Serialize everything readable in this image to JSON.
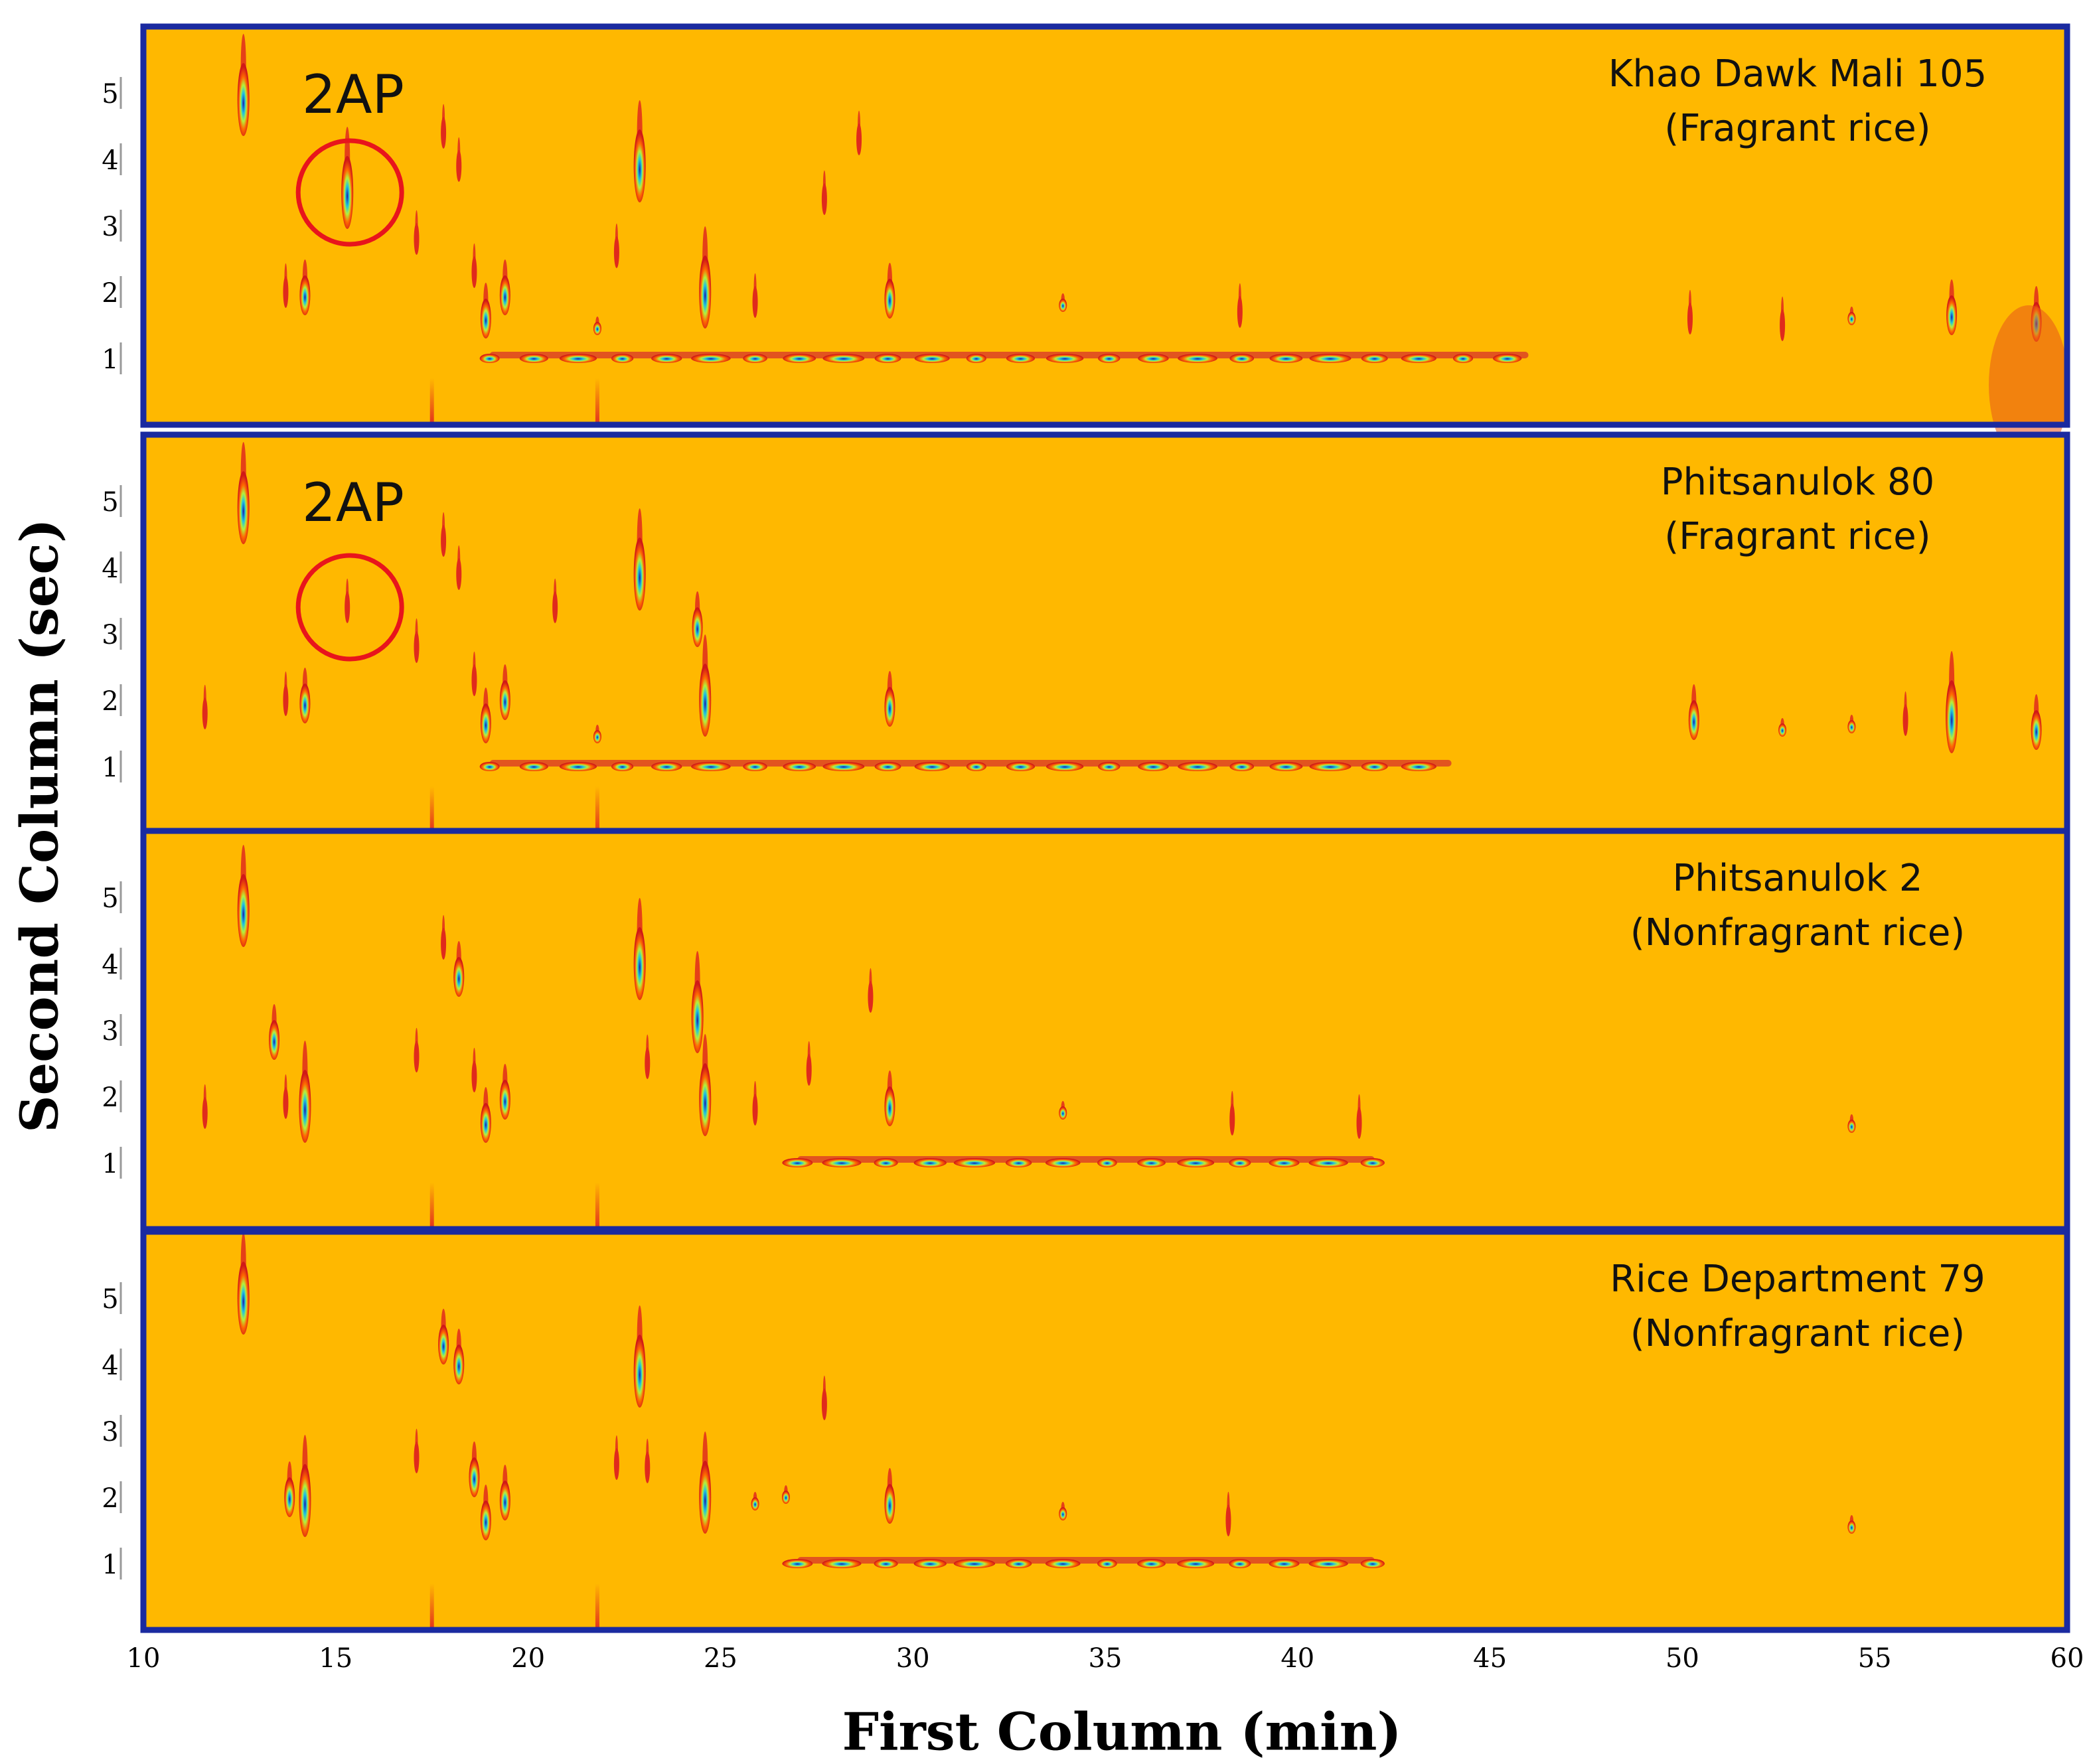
{
  "chart_data": {
    "type": "heatmap",
    "subtype": "GCxGC contour plots",
    "xlabel": "First Column  (min)",
    "ylabel": "Second Column  (sec)",
    "xlim": [
      10,
      60
    ],
    "ylim": [
      0,
      6
    ],
    "xticks": [
      "10",
      "15",
      "20",
      "25",
      "30",
      "35",
      "40",
      "45",
      "50",
      "55",
      "60"
    ],
    "yticks": [
      "1",
      "2",
      "3",
      "4",
      "5"
    ],
    "colors": {
      "background": "#FFB800",
      "frame": "#1A2AA0",
      "highlight": "#E8141C"
    },
    "highlight_label": "2AP",
    "panels": [
      {
        "title": "Khao Dawk Mali 105",
        "subtitle": "(Fragrant rice)",
        "highlight": {
          "x": 15.3,
          "y": 3.5
        },
        "peaks": [
          {
            "x": 12.6,
            "y": 4.9,
            "s": "l"
          },
          {
            "x": 15.3,
            "y": 3.5,
            "s": "l"
          },
          {
            "x": 14.2,
            "y": 1.95,
            "s": "m"
          },
          {
            "x": 13.7,
            "y": 2.0,
            "s": "t"
          },
          {
            "x": 17.8,
            "y": 4.4,
            "s": "t"
          },
          {
            "x": 18.2,
            "y": 3.9,
            "s": "t"
          },
          {
            "x": 17.1,
            "y": 2.8,
            "s": "t"
          },
          {
            "x": 18.6,
            "y": 2.3,
            "s": "t"
          },
          {
            "x": 18.9,
            "y": 1.6,
            "s": "m"
          },
          {
            "x": 19.4,
            "y": 1.95,
            "s": "m"
          },
          {
            "x": 22.9,
            "y": 3.9,
            "s": "l"
          },
          {
            "x": 24.6,
            "y": 2.0,
            "s": "l"
          },
          {
            "x": 21.8,
            "y": 1.45,
            "s": "s"
          },
          {
            "x": 28.6,
            "y": 4.3,
            "s": "t"
          },
          {
            "x": 27.7,
            "y": 3.4,
            "s": "t"
          },
          {
            "x": 22.3,
            "y": 2.6,
            "s": "t"
          },
          {
            "x": 25.9,
            "y": 1.85,
            "s": "t"
          },
          {
            "x": 29.4,
            "y": 1.9,
            "s": "m"
          },
          {
            "x": 33.9,
            "y": 1.8,
            "s": "s"
          },
          {
            "x": 54.4,
            "y": 1.6,
            "s": "s"
          },
          {
            "x": 57.0,
            "y": 1.65,
            "s": "m"
          },
          {
            "x": 59.2,
            "y": 1.55,
            "s": "m"
          },
          {
            "x": 50.2,
            "y": 1.6,
            "s": "t"
          },
          {
            "x": 52.6,
            "y": 1.5,
            "s": "t"
          },
          {
            "x": 38.5,
            "y": 1.7,
            "s": "t"
          }
        ],
        "baseline_from": 19.0,
        "baseline_to": 46.0
      },
      {
        "title": "Phitsanulok 80",
        "subtitle": "(Fragrant rice)",
        "highlight": {
          "x": 15.3,
          "y": 3.4
        },
        "peaks": [
          {
            "x": 12.6,
            "y": 4.9,
            "s": "l"
          },
          {
            "x": 15.3,
            "y": 3.4,
            "s": "t"
          },
          {
            "x": 14.2,
            "y": 1.95,
            "s": "m"
          },
          {
            "x": 11.6,
            "y": 1.8,
            "s": "t"
          },
          {
            "x": 13.7,
            "y": 2.0,
            "s": "t"
          },
          {
            "x": 17.8,
            "y": 4.4,
            "s": "t"
          },
          {
            "x": 18.2,
            "y": 3.9,
            "s": "t"
          },
          {
            "x": 17.1,
            "y": 2.8,
            "s": "t"
          },
          {
            "x": 18.6,
            "y": 2.3,
            "s": "t"
          },
          {
            "x": 18.9,
            "y": 1.65,
            "s": "m"
          },
          {
            "x": 19.4,
            "y": 2.0,
            "s": "m"
          },
          {
            "x": 22.9,
            "y": 3.9,
            "s": "l"
          },
          {
            "x": 24.4,
            "y": 3.1,
            "s": "m"
          },
          {
            "x": 24.6,
            "y": 2.0,
            "s": "l"
          },
          {
            "x": 21.8,
            "y": 1.45,
            "s": "s"
          },
          {
            "x": 20.7,
            "y": 3.4,
            "s": "t"
          },
          {
            "x": 29.4,
            "y": 1.9,
            "s": "m"
          },
          {
            "x": 50.3,
            "y": 1.7,
            "s": "m"
          },
          {
            "x": 52.6,
            "y": 1.55,
            "s": "s"
          },
          {
            "x": 54.4,
            "y": 1.6,
            "s": "s"
          },
          {
            "x": 57.0,
            "y": 1.75,
            "s": "l"
          },
          {
            "x": 59.2,
            "y": 1.55,
            "s": "m"
          },
          {
            "x": 55.8,
            "y": 1.7,
            "s": "t"
          }
        ],
        "baseline_from": 19.0,
        "baseline_to": 44.0
      },
      {
        "title": "Phitsanulok 2",
        "subtitle": "(Nonfragrant rice)",
        "highlight": null,
        "peaks": [
          {
            "x": 12.6,
            "y": 4.8,
            "s": "l"
          },
          {
            "x": 13.4,
            "y": 2.85,
            "s": "m"
          },
          {
            "x": 14.2,
            "y": 1.85,
            "s": "l"
          },
          {
            "x": 11.6,
            "y": 1.75,
            "s": "t"
          },
          {
            "x": 13.7,
            "y": 1.9,
            "s": "t"
          },
          {
            "x": 17.8,
            "y": 4.3,
            "s": "t"
          },
          {
            "x": 18.2,
            "y": 3.8,
            "s": "m"
          },
          {
            "x": 17.1,
            "y": 2.6,
            "s": "t"
          },
          {
            "x": 18.6,
            "y": 2.3,
            "s": "t"
          },
          {
            "x": 18.9,
            "y": 1.6,
            "s": "m"
          },
          {
            "x": 19.4,
            "y": 1.95,
            "s": "m"
          },
          {
            "x": 22.9,
            "y": 4.0,
            "s": "l"
          },
          {
            "x": 24.4,
            "y": 3.2,
            "s": "l"
          },
          {
            "x": 24.6,
            "y": 1.95,
            "s": "l"
          },
          {
            "x": 23.1,
            "y": 2.5,
            "s": "t"
          },
          {
            "x": 25.9,
            "y": 1.8,
            "s": "t"
          },
          {
            "x": 27.3,
            "y": 2.4,
            "s": "t"
          },
          {
            "x": 28.9,
            "y": 3.5,
            "s": "t"
          },
          {
            "x": 29.4,
            "y": 1.85,
            "s": "m"
          },
          {
            "x": 33.9,
            "y": 1.75,
            "s": "s"
          },
          {
            "x": 41.6,
            "y": 1.6,
            "s": "t"
          },
          {
            "x": 54.4,
            "y": 1.55,
            "s": "s"
          },
          {
            "x": 38.3,
            "y": 1.65,
            "s": "t"
          }
        ],
        "baseline_from": 27.0,
        "baseline_to": 42.0
      },
      {
        "title": "Rice Department 79",
        "subtitle": "(Nonfragrant rice)",
        "highlight": null,
        "peaks": [
          {
            "x": 12.6,
            "y": 5.0,
            "s": "l"
          },
          {
            "x": 13.8,
            "y": 2.0,
            "s": "m"
          },
          {
            "x": 14.2,
            "y": 1.95,
            "s": "l"
          },
          {
            "x": 17.8,
            "y": 4.3,
            "s": "m"
          },
          {
            "x": 18.2,
            "y": 4.0,
            "s": "m"
          },
          {
            "x": 17.1,
            "y": 2.6,
            "s": "t"
          },
          {
            "x": 18.6,
            "y": 2.3,
            "s": "m"
          },
          {
            "x": 18.9,
            "y": 1.65,
            "s": "m"
          },
          {
            "x": 19.4,
            "y": 1.95,
            "s": "m"
          },
          {
            "x": 22.9,
            "y": 3.9,
            "s": "l"
          },
          {
            "x": 24.6,
            "y": 2.0,
            "s": "l"
          },
          {
            "x": 22.3,
            "y": 2.5,
            "s": "t"
          },
          {
            "x": 23.1,
            "y": 2.45,
            "s": "t"
          },
          {
            "x": 25.9,
            "y": 1.9,
            "s": "s"
          },
          {
            "x": 26.7,
            "y": 2.0,
            "s": "s"
          },
          {
            "x": 27.7,
            "y": 3.4,
            "s": "t"
          },
          {
            "x": 29.4,
            "y": 1.9,
            "s": "m"
          },
          {
            "x": 33.9,
            "y": 1.75,
            "s": "s"
          },
          {
            "x": 38.2,
            "y": 1.65,
            "s": "t"
          },
          {
            "x": 54.4,
            "y": 1.55,
            "s": "s"
          }
        ],
        "baseline_from": 27.0,
        "baseline_to": 42.0
      }
    ]
  }
}
